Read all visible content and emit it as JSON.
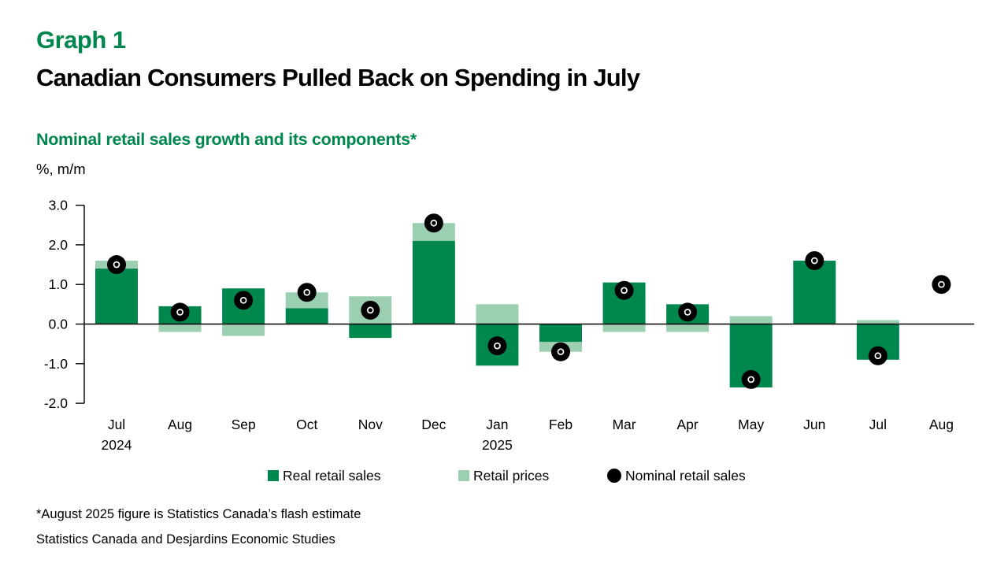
{
  "header": {
    "graph_label": "Graph 1",
    "title": "Canadian Consumers Pulled Back on Spending in July",
    "subtitle": "Nominal retail sales growth and its components*"
  },
  "footer": {
    "footnote": "*August 2025 figure is Statistics Canada’s flash estimate",
    "source": "Statistics Canada and Desjardins Economic Studies"
  },
  "colors": {
    "brand_green": "#00874e",
    "real_bar_green": "#00874e",
    "prices_bar_green": "#9ccfb2",
    "nominal_marker_black": "#000000",
    "axis_black": "#000000"
  },
  "chart_data": {
    "type": "bar",
    "stacking": "signed-stacked",
    "title": "Nominal retail sales growth and its components*",
    "xlabel": "",
    "ylabel": "%, m/m",
    "ylim": [
      -2.0,
      3.0
    ],
    "yticks": [
      3.0,
      2.0,
      1.0,
      0.0,
      -1.0,
      -2.0
    ],
    "grid": false,
    "legend_position": "bottom",
    "categories": [
      "Jul",
      "Aug",
      "Sep",
      "Oct",
      "Nov",
      "Dec",
      "Jan",
      "Feb",
      "Mar",
      "Apr",
      "May",
      "Jun",
      "Jul",
      "Aug"
    ],
    "year_labels": [
      {
        "index": 0,
        "label": "2024"
      },
      {
        "index": 6,
        "label": "2025"
      }
    ],
    "series": [
      {
        "name": "Real retail sales",
        "type": "bar",
        "color": "#00874e",
        "values": [
          1.4,
          0.45,
          0.9,
          0.4,
          -0.35,
          2.1,
          -1.05,
          -0.45,
          1.05,
          0.5,
          -1.6,
          1.6,
          -0.9,
          null
        ]
      },
      {
        "name": "Retail prices",
        "type": "bar",
        "color": "#9ccfb2",
        "values": [
          0.2,
          -0.2,
          -0.3,
          0.4,
          0.7,
          0.45,
          0.5,
          -0.25,
          -0.2,
          -0.2,
          0.2,
          0.0,
          0.1,
          null
        ]
      },
      {
        "name": "Nominal retail sales",
        "type": "scatter",
        "color": "#000000",
        "values": [
          1.5,
          0.3,
          0.6,
          0.8,
          0.35,
          2.55,
          -0.55,
          -0.7,
          0.85,
          0.3,
          -1.4,
          1.6,
          -0.8,
          1.0
        ]
      }
    ]
  }
}
